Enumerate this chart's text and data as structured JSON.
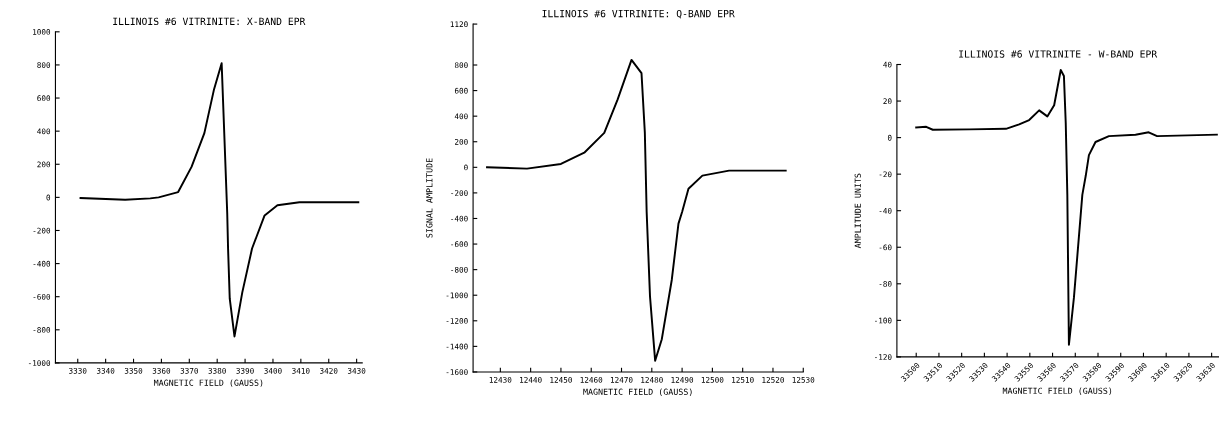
{
  "chart_data": [
    {
      "type": "line",
      "title": "ILLINOIS #6 VITRINITE: X-BAND EPR",
      "xlabel": "MAGNETIC FIELD (GAUSS)",
      "color": "#000000",
      "grid": false,
      "legend": false,
      "marker": "none",
      "line_style": "solid",
      "x": [
        3331,
        3347,
        3356,
        3359,
        3366,
        3370.8,
        3375.4,
        3378.8,
        3381.6,
        3383.6,
        3383.9,
        3384.5,
        3386.2,
        3389,
        3392.5,
        3397,
        3401.6,
        3409.5,
        3430.6
      ],
      "values": [
        -4,
        -14,
        -6,
        0,
        32,
        184,
        388,
        648,
        810,
        -97,
        -309,
        -612,
        -840,
        -574,
        -309,
        -109,
        -48,
        -30,
        -30
      ],
      "xlim": [
        3322,
        3432
      ],
      "xticks": [
        3330,
        3340,
        3350,
        3360,
        3370,
        3380,
        3390,
        3400,
        3410,
        3420,
        3430
      ],
      "ylim": [
        -1000,
        1000
      ],
      "yticks": [
        -1000,
        -800,
        -600,
        -400,
        -200,
        0,
        200,
        400,
        600,
        800,
        1000
      ]
    },
    {
      "type": "line",
      "title": "ILLINOIS #6 VITRINITE: Q-BAND EPR",
      "xlabel": "MAGNETIC FIELD (GAUSS)",
      "ylabel": "SIGNAL AMPLITUDE",
      "color": "#000000",
      "grid": false,
      "legend": false,
      "marker": "none",
      "line_style": "solid",
      "x": [
        12425.6,
        12438.8,
        12450,
        12457.7,
        12464.3,
        12468.7,
        12473.3,
        12476.6,
        12477.7,
        12478.3,
        12479.4,
        12481.1,
        12483.3,
        12486.6,
        12488.8,
        12490,
        12492.1,
        12496.7,
        12505.5,
        12524.2
      ],
      "values": [
        0,
        -10,
        26,
        114,
        269,
        529,
        840,
        736,
        271,
        -349,
        -1008,
        -1512,
        -1344,
        -879,
        -440,
        -349,
        -168,
        -65,
        -26,
        -26
      ],
      "xlim": [
        12421,
        12530
      ],
      "xticks": [
        12430,
        12440,
        12450,
        12460,
        12470,
        12480,
        12490,
        12500,
        12510,
        12520,
        12530
      ],
      "ylim": [
        -1600,
        1120
      ],
      "yticks": [
        -1600,
        -1400,
        -1200,
        -1000,
        -800,
        -600,
        -400,
        -200,
        0,
        200,
        400,
        600,
        800,
        1120
      ]
    },
    {
      "type": "line",
      "title": "ILLINOIS #6 VITRINITE - W-BAND EPR",
      "xlabel": "MAGNETIC FIELD (GAUSS)",
      "ylabel": "AMPLITUDE UNITS",
      "color": "#000000",
      "grid": false,
      "legend": false,
      "marker": "none",
      "line_style": "solid",
      "x": [
        33500,
        33504.4,
        33507.3,
        33523.4,
        33539.5,
        33545.3,
        33549.7,
        33554.1,
        33557.7,
        33560.7,
        33563.6,
        33565,
        33565.8,
        33566.5,
        33567.2,
        33569.4,
        33573.1,
        33574.6,
        33576,
        33578.9,
        33584.8,
        33596.5,
        33602.3,
        33606,
        33632.3
      ],
      "values": [
        5.6,
        5.9,
        4.3,
        4.5,
        4.8,
        7.2,
        9.6,
        14.9,
        11.6,
        17.7,
        37,
        33.7,
        8,
        -31.3,
        -113.3,
        -87.6,
        -31.3,
        -20.9,
        -9.6,
        -2.4,
        0.8,
        1.6,
        2.9,
        0.8,
        1.6
      ],
      "xlim": [
        33491.5,
        33633
      ],
      "xticks": [
        33500,
        33510,
        33520,
        33530,
        33540,
        33550,
        33560,
        33570,
        33580,
        33590,
        33600,
        33610,
        33620,
        33630
      ],
      "ylim": [
        -120,
        40
      ],
      "yticks": [
        -120,
        -100,
        -80,
        -60,
        -40,
        -20,
        0,
        20,
        40
      ]
    }
  ]
}
